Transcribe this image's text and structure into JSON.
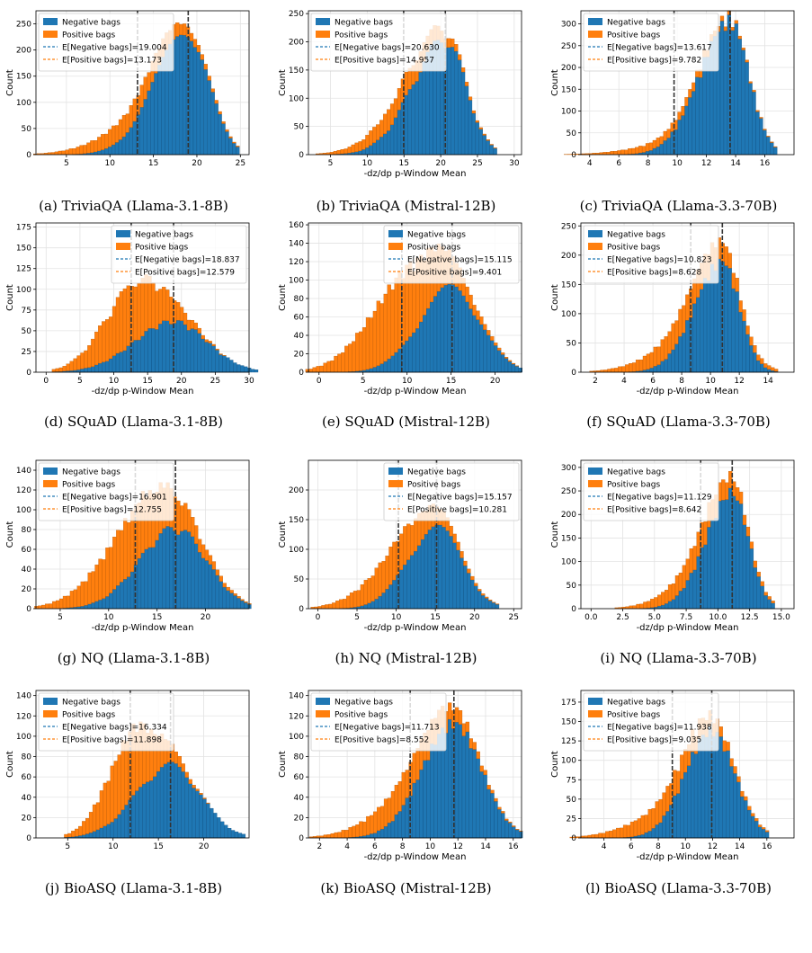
{
  "series_names": [
    "Negative bags",
    "Positive bags"
  ],
  "colors": {
    "negative": "#1f77b4",
    "positive": "#ff7f0e",
    "mean_line": "#333333"
  },
  "chart_data": [
    {
      "type": "bar",
      "caption": "(a) TriviaQA (Llama-3.1-8B)",
      "xlabel": "",
      "ylabel": "Count",
      "xlim": [
        1.5,
        26
      ],
      "xticks": [
        5,
        10,
        15,
        20,
        25
      ],
      "ylim": [
        0,
        275
      ],
      "yticks": [
        0,
        50,
        100,
        150,
        200,
        250
      ],
      "legend_position": "top-left",
      "mean_labels": [
        "E[Negative bags]=19.004",
        "E[Positive bags]=13.173"
      ],
      "means": [
        19.004,
        13.173
      ],
      "series": [
        {
          "name": "Negative bags",
          "mean": 19.004,
          "sd": 2.4,
          "w": 0.78,
          "peak": 232
        },
        {
          "name": "Positive bags",
          "mean": 13.173,
          "sd": 4.6,
          "w": 0.22,
          "peak": 40
        }
      ]
    },
    {
      "type": "bar",
      "caption": "(b) TriviaQA (Mistral-12B)",
      "xlabel": "-dz/dp p-Window Mean",
      "ylabel": "Count",
      "xlim": [
        2,
        31
      ],
      "xticks": [
        5,
        10,
        15,
        20,
        25,
        30
      ],
      "ylim": [
        0,
        255
      ],
      "yticks": [
        0,
        50,
        100,
        150,
        200,
        250
      ],
      "legend_position": "top-left",
      "mean_labels": [
        "E[Negative bags]=20.630",
        "E[Positive bags]=14.957"
      ],
      "means": [
        20.63,
        14.957
      ],
      "series": [
        {
          "name": "Negative bags",
          "mean": 20.63,
          "sd": 2.8,
          "w": 0.78,
          "peak": 200
        },
        {
          "name": "Positive bags",
          "mean": 14.957,
          "sd": 4.6,
          "w": 0.22,
          "peak": 38
        }
      ]
    },
    {
      "type": "bar",
      "caption": "(c) TriviaQA (Llama-3.3-70B)",
      "xlabel": "",
      "ylabel": "Count",
      "xlim": [
        3.4,
        18
      ],
      "xticks": [
        4,
        6,
        8,
        10,
        12,
        14,
        16
      ],
      "ylim": [
        0,
        330
      ],
      "yticks": [
        0,
        50,
        100,
        150,
        200,
        250,
        300
      ],
      "legend_position": "top-left",
      "mean_labels": [
        "E[Negative bags]=13.617",
        "E[Positive bags]=9.782"
      ],
      "means": [
        13.617,
        9.782
      ],
      "series": [
        {
          "name": "Negative bags",
          "mean": 13.617,
          "sd": 1.3,
          "w": 0.82,
          "peak": 300
        },
        {
          "name": "Positive bags",
          "mean": 9.782,
          "sd": 2.9,
          "w": 0.18,
          "peak": 20
        }
      ]
    },
    {
      "type": "bar",
      "caption": "(d) SQuAD (Llama-3.1-8B)",
      "xlabel": "-dz/dp p-Window Mean",
      "ylabel": "Count",
      "xlim": [
        -1.5,
        30
      ],
      "xticks": [
        0,
        5,
        10,
        15,
        20,
        25,
        30
      ],
      "ylim": [
        0,
        180
      ],
      "yticks": [
        0,
        25,
        50,
        75,
        100,
        125,
        150,
        175
      ],
      "legend_position": "top-right",
      "mean_labels": [
        "E[Negative bags]=18.837",
        "E[Positive bags]=12.579"
      ],
      "means": [
        18.837,
        12.579
      ],
      "series": [
        {
          "name": "Negative bags",
          "mean": 18.837,
          "sd": 5.0,
          "w": 0.42,
          "peak": 60
        },
        {
          "name": "Positive bags",
          "mean": 12.579,
          "sd": 4.5,
          "w": 0.58,
          "peak": 70
        }
      ]
    },
    {
      "type": "bar",
      "caption": "(e) SQuAD (Mistral-12B)",
      "xlabel": "-dz/dp p-Window Mean",
      "ylabel": "Count",
      "xlim": [
        -1.2,
        23
      ],
      "xticks": [
        0,
        5,
        10,
        15,
        20
      ],
      "ylim": [
        0,
        162
      ],
      "yticks": [
        0,
        20,
        40,
        60,
        80,
        100,
        120,
        140,
        160
      ],
      "legend_position": "top-right",
      "mean_labels": [
        "E[Negative bags]=15.115",
        "E[Positive bags]=9.401"
      ],
      "means": [
        15.115,
        9.401
      ],
      "series": [
        {
          "name": "Negative bags",
          "mean": 15.115,
          "sd": 3.2,
          "w": 0.45,
          "peak": 90
        },
        {
          "name": "Positive bags",
          "mean": 9.401,
          "sd": 4.2,
          "w": 0.55,
          "peak": 78
        }
      ]
    },
    {
      "type": "bar",
      "caption": "(f) SQuAD (Llama-3.3-70B)",
      "xlabel": "-dz/dp p-Window Mean",
      "ylabel": "Count",
      "xlim": [
        1,
        15.8
      ],
      "xticks": [
        2,
        4,
        6,
        8,
        10,
        12,
        14
      ],
      "ylim": [
        0,
        255
      ],
      "yticks": [
        0,
        50,
        100,
        150,
        200,
        250
      ],
      "legend_position": "top-left",
      "mean_labels": [
        "E[Negative bags]=10.823",
        "E[Positive bags]=8.628"
      ],
      "means": [
        10.823,
        8.628
      ],
      "series": [
        {
          "name": "Negative bags",
          "mean": 10.823,
          "sd": 1.2,
          "w": 0.7,
          "peak": 185
        },
        {
          "name": "Positive bags",
          "mean": 8.628,
          "sd": 2.7,
          "w": 0.3,
          "peak": 45
        }
      ]
    },
    {
      "type": "bar",
      "caption": "(g) NQ (Llama-3.1-8B)",
      "xlabel": "-dz/dp p-Window Mean",
      "ylabel": "Count",
      "xlim": [
        2.5,
        24.5
      ],
      "xticks": [
        5,
        10,
        15,
        20
      ],
      "ylim": [
        0,
        150
      ],
      "yticks": [
        0,
        20,
        40,
        60,
        80,
        100,
        120,
        140
      ],
      "legend_position": "top-left",
      "mean_labels": [
        "E[Negative bags]=16.901",
        "E[Positive bags]=12.755"
      ],
      "means": [
        16.901,
        12.755
      ],
      "series": [
        {
          "name": "Negative bags",
          "mean": 16.901,
          "sd": 3.2,
          "w": 0.45,
          "peak": 80
        },
        {
          "name": "Positive bags",
          "mean": 12.755,
          "sd": 4.0,
          "w": 0.55,
          "peak": 58
        }
      ]
    },
    {
      "type": "bar",
      "caption": "(h) NQ (Mistral-12B)",
      "xlabel": "-dz/dp p-Window Mean",
      "ylabel": "Count",
      "xlim": [
        -1.2,
        26
      ],
      "xticks": [
        0,
        5,
        10,
        15,
        20,
        25
      ],
      "ylim": [
        0,
        250
      ],
      "yticks": [
        0,
        50,
        100,
        150,
        200
      ],
      "legend_position": "top-right",
      "mean_labels": [
        "E[Negative bags]=15.157",
        "E[Positive bags]=10.281"
      ],
      "means": [
        15.157,
        10.281
      ],
      "series": [
        {
          "name": "Negative bags",
          "mean": 15.157,
          "sd": 3.2,
          "w": 0.58,
          "peak": 135
        },
        {
          "name": "Positive bags",
          "mean": 10.281,
          "sd": 4.3,
          "w": 0.42,
          "peak": 60
        }
      ]
    },
    {
      "type": "bar",
      "caption": "(i) NQ (Llama-3.3-70B)",
      "xlabel": "-dz/dp p-Window Mean",
      "ylabel": "Count",
      "xlim": [
        -0.8,
        16
      ],
      "xticks": [
        0.0,
        2.5,
        5.0,
        7.5,
        10.0,
        12.5,
        15.0
      ],
      "ylim": [
        0,
        315
      ],
      "yticks": [
        0,
        50,
        100,
        150,
        200,
        250,
        300
      ],
      "legend_position": "top-left",
      "mean_labels": [
        "E[Negative bags]=11.129",
        "E[Positive bags]=8.642"
      ],
      "means": [
        11.129,
        8.642
      ],
      "series": [
        {
          "name": "Negative bags",
          "mean": 11.129,
          "sd": 1.3,
          "w": 0.72,
          "peak": 240
        },
        {
          "name": "Positive bags",
          "mean": 8.642,
          "sd": 2.6,
          "w": 0.28,
          "peak": 50
        }
      ]
    },
    {
      "type": "bar",
      "caption": "(j) BioASQ (Llama-3.1-8B)",
      "xlabel": "",
      "ylabel": "Count",
      "xlim": [
        1.5,
        25
      ],
      "xticks": [
        5,
        10,
        15,
        20
      ],
      "ylim": [
        0,
        145
      ],
      "yticks": [
        0,
        20,
        40,
        60,
        80,
        100,
        120,
        140
      ],
      "legend_position": "top-left",
      "mean_labels": [
        "E[Negative bags]=16.334",
        "E[Positive bags]=11.898"
      ],
      "means": [
        16.334,
        11.898
      ],
      "series": [
        {
          "name": "Negative bags",
          "mean": 16.334,
          "sd": 3.3,
          "w": 0.5,
          "peak": 70
        },
        {
          "name": "Positive bags",
          "mean": 11.898,
          "sd": 2.8,
          "w": 0.5,
          "peak": 65
        }
      ]
    },
    {
      "type": "bar",
      "caption": "(k) BioASQ (Mistral-12B)",
      "xlabel": "-dz/dp p-Window Mean",
      "ylabel": "Count",
      "xlim": [
        1.2,
        16.6
      ],
      "xticks": [
        2,
        4,
        6,
        8,
        10,
        12,
        14,
        16
      ],
      "ylim": [
        0,
        145
      ],
      "yticks": [
        0,
        20,
        40,
        60,
        80,
        100,
        120,
        140
      ],
      "legend_position": "top-left",
      "mean_labels": [
        "E[Negative bags]=11.713",
        "E[Positive bags]=8.552"
      ],
      "means": [
        11.713,
        8.552
      ],
      "series": [
        {
          "name": "Negative bags",
          "mean": 11.713,
          "sd": 2.0,
          "w": 0.65,
          "peak": 110
        },
        {
          "name": "Positive bags",
          "mean": 8.552,
          "sd": 2.8,
          "w": 0.35,
          "peak": 30
        }
      ]
    },
    {
      "type": "bar",
      "caption": "(l) BioASQ (Llama-3.3-70B)",
      "xlabel": "-dz/dp p-Window Mean",
      "ylabel": "Count",
      "xlim": [
        2.3,
        18
      ],
      "xticks": [
        4,
        6,
        8,
        10,
        12,
        14,
        16
      ],
      "ylim": [
        0,
        190
      ],
      "yticks": [
        0,
        25,
        50,
        75,
        100,
        125,
        150,
        175
      ],
      "legend_position": "top-left",
      "mean_labels": [
        "E[Negative bags]=11.938",
        "E[Positive bags]=9.035"
      ],
      "means": [
        11.938,
        9.035
      ],
      "series": [
        {
          "name": "Negative bags",
          "mean": 11.938,
          "sd": 1.7,
          "w": 0.62,
          "peak": 135
        },
        {
          "name": "Positive bags",
          "mean": 9.035,
          "sd": 2.9,
          "w": 0.38,
          "peak": 30
        }
      ]
    }
  ]
}
